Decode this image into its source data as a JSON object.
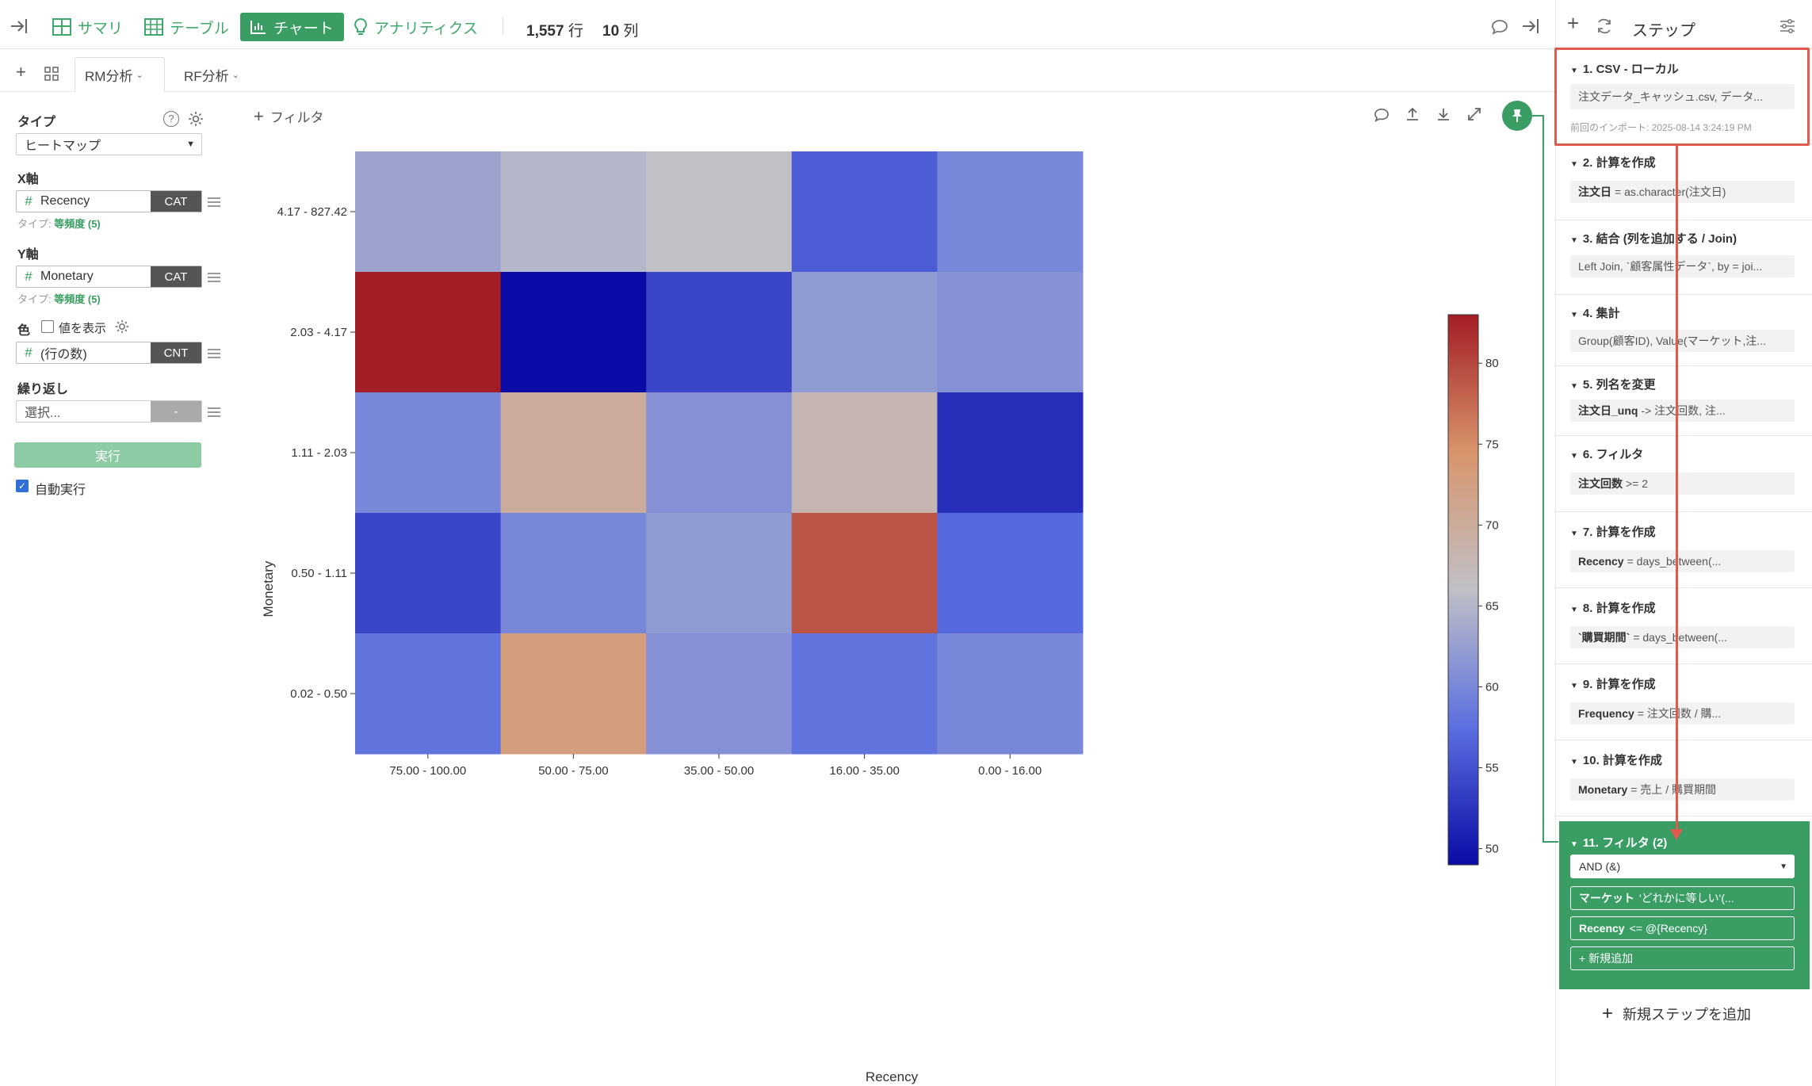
{
  "topbar": {
    "summary": "サマリ",
    "table": "テーブル",
    "chart": "チャート",
    "analytics": "アナリティクス",
    "rows_num": "1,557",
    "rows_unit": "行",
    "cols_num": "10",
    "cols_unit": "列"
  },
  "tabs": [
    {
      "label": "RM分析",
      "active": true
    },
    {
      "label": "RF分析",
      "active": false
    }
  ],
  "config": {
    "type_label": "タイプ",
    "type_value": "ヒートマップ",
    "x_label": "X軸",
    "x_column": "Recency",
    "x_tag": "CAT",
    "x_subtype_prefix": "タイプ:",
    "x_subtype": "等頻度 (5)",
    "y_label": "Y軸",
    "y_column": "Monetary",
    "y_tag": "CAT",
    "y_subtype_prefix": "タイプ:",
    "y_subtype": "等頻度 (5)",
    "color_label": "色",
    "show_values_label": "値を表示",
    "color_column": "(行の数)",
    "color_tag": "CNT",
    "repeat_label": "繰り返し",
    "repeat_placeholder": "選択...",
    "repeat_dash": "-",
    "run_button": "実行",
    "auto_run_label": "自動実行"
  },
  "filter_label": "フィルタ",
  "chart_data": {
    "type": "heatmap",
    "xlabel": "Recency",
    "ylabel": "Monetary",
    "x_categories": [
      "75.00 - 100.00",
      "50.00 - 75.00",
      "35.00 - 50.00",
      "16.00 - 35.00",
      "0.00 - 16.00"
    ],
    "y_categories": [
      "4.17 - 827.42",
      "2.03 - 4.17",
      "1.11 - 2.03",
      "0.50 - 1.11",
      "0.02 - 0.50"
    ],
    "values": [
      [
        63,
        65,
        66,
        56,
        60
      ],
      [
        83,
        49,
        54,
        62,
        61
      ],
      [
        60,
        70,
        61,
        68,
        52
      ],
      [
        54,
        60,
        62,
        79,
        57
      ],
      [
        58,
        73,
        61,
        58,
        60
      ]
    ],
    "colorbar_ticks": [
      80,
      75,
      70,
      65,
      60,
      55,
      50
    ],
    "color_range": [
      49,
      83
    ],
    "colormap": [
      "#0a0aa6",
      "#5b6fe0",
      "#c0c0c6",
      "#d8956c",
      "#a31d24"
    ]
  },
  "steps_panel": {
    "title": "ステップ",
    "steps": [
      {
        "title": "1. CSV - ローカル",
        "body_plain": "注文データ_キャッシュ.csv, データ...",
        "sub": "前回のインポート: 2025-08-14 3:24:19 PM"
      },
      {
        "title": "2. 計算を作成",
        "body_bold": "注文日",
        "body_plain": "= as.character(注文日)"
      },
      {
        "title": "3. 結合 (列を追加する / Join)",
        "body_plain": "Left Join, `顧客属性データ`, by = joi..."
      },
      {
        "title": "4. 集計",
        "body_plain": "Group(顧客ID), Value(マーケット,注..."
      },
      {
        "title": "5. 列名を変更",
        "body_bold": "注文日_unq",
        "body_plain": "-> 注文回数, 注..."
      },
      {
        "title": "6. フィルタ",
        "body_bold": "注文回数",
        "body_plain": ">= 2"
      },
      {
        "title": "7. 計算を作成",
        "body_bold": "Recency",
        "body_plain": "= days_between(..."
      },
      {
        "title": "8. 計算を作成",
        "body_bold": "`購買期間`",
        "body_plain": "= days_between(..."
      },
      {
        "title": "9. 計算を作成",
        "body_bold": "Frequency",
        "body_plain": "= 注文回数 / 購..."
      },
      {
        "title": "10. 計算を作成",
        "body_bold": "Monetary",
        "body_plain": "= 売上 / 購買期間"
      }
    ],
    "active_step": {
      "title": "11. フィルタ (2)",
      "logic": "AND (&)",
      "cond1_bold": "マーケット",
      "cond1_plain": "'どれかに等しい'(...",
      "cond2_bold": "Recency",
      "cond2_plain": "<= @{Recency}",
      "add_new": "+ 新規追加"
    },
    "add_step": "新規ステップを追加"
  },
  "colors": {
    "accent": "#3a9e64",
    "highlight": "#e05a4e",
    "active_step_bg": "#3a9e64"
  }
}
